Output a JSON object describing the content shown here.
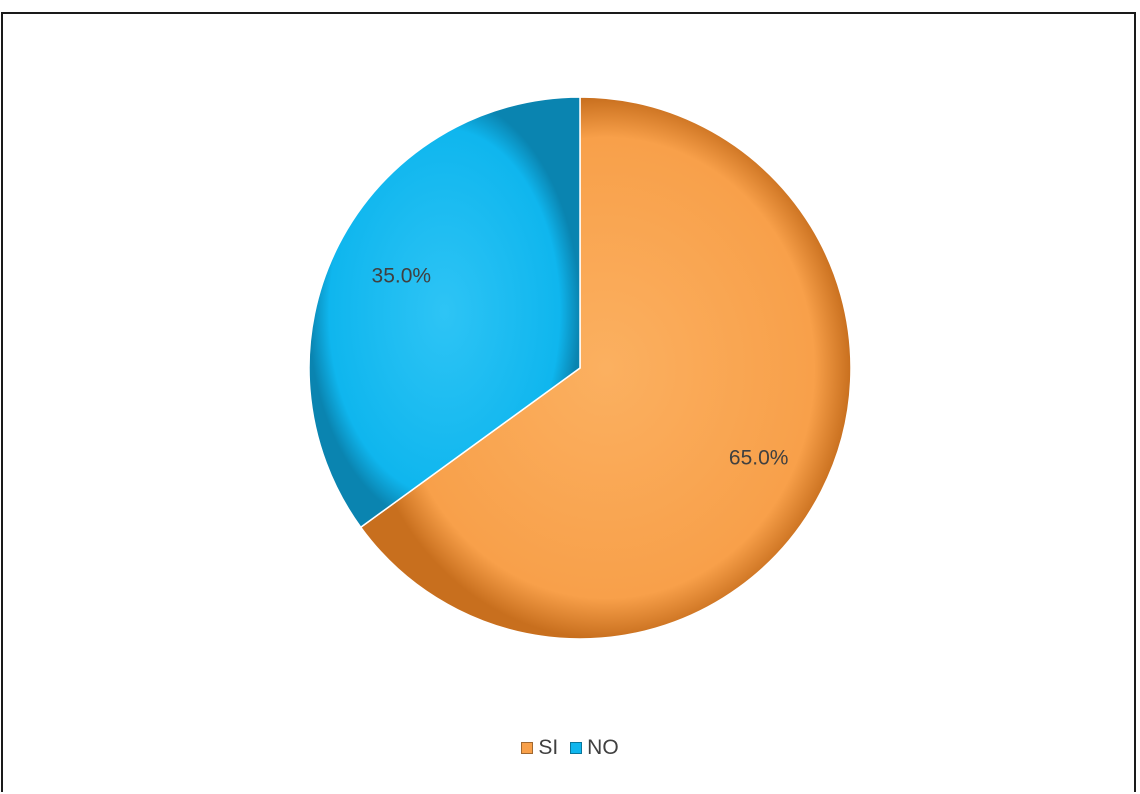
{
  "chart_data": {
    "type": "pie",
    "title": "",
    "slices": [
      {
        "label": "SI",
        "value": 65.0,
        "display": "65.0%",
        "color": "#F8A04A"
      },
      {
        "label": "NO",
        "value": 35.0,
        "display": "35.0%",
        "color": "#0FB6EE"
      }
    ],
    "start_angle_deg": 0,
    "direction": "clockwise",
    "legend_position": "bottom"
  }
}
